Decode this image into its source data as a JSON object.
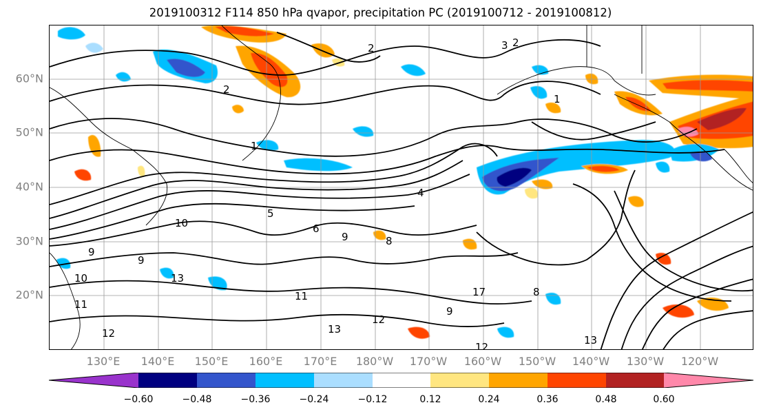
{
  "title": "2019100312 F114 850 hPa qvapor, precipitation PC (2019100712 - 2019100812)",
  "lat_labels": [
    "60°N",
    "50°N",
    "40°N",
    "30°N",
    "20°N"
  ],
  "lon_labels": [
    "130°E",
    "140°E",
    "150°E",
    "160°E",
    "170°E",
    "180°W",
    "170°W",
    "160°W",
    "150°W",
    "140°W",
    "130°W",
    "120°W"
  ],
  "colorbar": {
    "colors": [
      "#9933cc",
      "#000080",
      "#3355cc",
      "#00bfff",
      "#aadeff",
      "#ffffff",
      "#ffe680",
      "#ffa500",
      "#ff4500",
      "#b22222",
      "#ff88aa"
    ],
    "tick_labels": [
      "−0.60",
      "−0.48",
      "−0.36",
      "−0.24",
      "−0.12",
      "0.12",
      "0.24",
      "0.36",
      "0.48",
      "0.60"
    ]
  },
  "contour_labels": [
    "2",
    "3",
    "2",
    "2",
    "1",
    "1",
    "4",
    "5",
    "6",
    "9",
    "10",
    "8",
    "9",
    "9",
    "10",
    "11",
    "12",
    "13",
    "11",
    "12",
    "13",
    "17",
    "9",
    "8",
    "13",
    "12"
  ]
}
